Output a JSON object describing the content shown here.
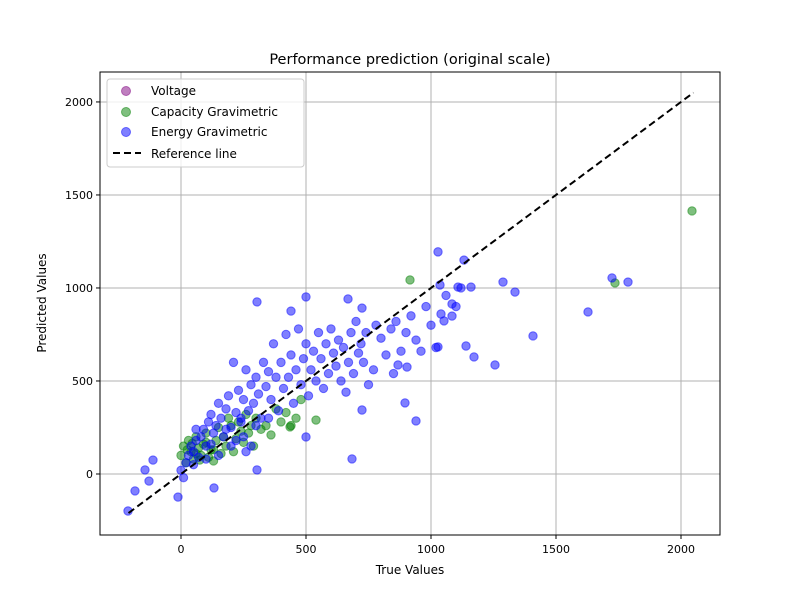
{
  "chart_data": {
    "type": "scatter",
    "title": "Performance prediction (original scale)",
    "xlabel": "True Values",
    "ylabel": "Predicted Values",
    "xlim": [
      -324,
      2156
    ],
    "ylim": [
      -328,
      2161
    ],
    "xticks": [
      0,
      500,
      1000,
      1500,
      2000
    ],
    "yticks": [
      0,
      500,
      1000,
      1500,
      2000
    ],
    "grid": true,
    "legend_position": "top-left",
    "series": [
      {
        "name": "Voltage",
        "color": "#800080",
        "points": []
      },
      {
        "name": "Capacity Gravimetric",
        "color": "#008000",
        "points": [
          [
            0,
            100
          ],
          [
            10,
            150
          ],
          [
            20,
            60
          ],
          [
            30,
            180
          ],
          [
            40,
            120
          ],
          [
            50,
            80
          ],
          [
            60,
            200
          ],
          [
            70,
            140
          ],
          [
            80,
            100
          ],
          [
            90,
            160
          ],
          [
            100,
            220
          ],
          [
            110,
            90
          ],
          [
            120,
            130
          ],
          [
            130,
            70
          ],
          [
            140,
            180
          ],
          [
            150,
            250
          ],
          [
            160,
            110
          ],
          [
            170,
            200
          ],
          [
            180,
            150
          ],
          [
            190,
            300
          ],
          [
            200,
            260
          ],
          [
            210,
            120
          ],
          [
            220,
            190
          ],
          [
            230,
            280
          ],
          [
            240,
            230
          ],
          [
            250,
            170
          ],
          [
            260,
            320
          ],
          [
            270,
            220
          ],
          [
            280,
            260
          ],
          [
            290,
            150
          ],
          [
            300,
            300
          ],
          [
            320,
            240
          ],
          [
            340,
            260
          ],
          [
            360,
            210
          ],
          [
            380,
            350
          ],
          [
            400,
            280
          ],
          [
            420,
            330
          ],
          [
            440,
            260
          ],
          [
            460,
            300
          ],
          [
            480,
            400
          ],
          [
            100,
            170
          ],
          [
            60,
            110
          ],
          [
            130,
            130
          ],
          [
            25,
            130
          ],
          [
            45,
            165
          ],
          [
            75,
            75
          ],
          [
            2044,
            1414
          ],
          [
            1736,
            1027
          ],
          [
            916,
            1043
          ],
          [
            436,
            253
          ],
          [
            540,
            290
          ]
        ]
      },
      {
        "name": "Energy Gravimetric",
        "color": "#0000ff",
        "points": [
          [
            0,
            20
          ],
          [
            10,
            -20
          ],
          [
            20,
            60
          ],
          [
            30,
            100
          ],
          [
            40,
            150
          ],
          [
            50,
            120
          ],
          [
            60,
            180
          ],
          [
            70,
            90
          ],
          [
            80,
            200
          ],
          [
            90,
            240
          ],
          [
            100,
            150
          ],
          [
            110,
            280
          ],
          [
            120,
            320
          ],
          [
            130,
            220
          ],
          [
            140,
            260
          ],
          [
            150,
            380
          ],
          [
            160,
            300
          ],
          [
            170,
            200
          ],
          [
            180,
            350
          ],
          [
            190,
            420
          ],
          [
            200,
            250
          ],
          [
            210,
            600
          ],
          [
            220,
            330
          ],
          [
            230,
            450
          ],
          [
            240,
            280
          ],
          [
            250,
            400
          ],
          [
            260,
            560
          ],
          [
            270,
            340
          ],
          [
            280,
            480
          ],
          [
            290,
            380
          ],
          [
            300,
            520
          ],
          [
            310,
            430
          ],
          [
            320,
            300
          ],
          [
            330,
            600
          ],
          [
            340,
            470
          ],
          [
            350,
            550
          ],
          [
            360,
            400
          ],
          [
            370,
            700
          ],
          [
            380,
            520
          ],
          [
            390,
            340
          ],
          [
            400,
            600
          ],
          [
            410,
            460
          ],
          [
            420,
            750
          ],
          [
            430,
            520
          ],
          [
            440,
            640
          ],
          [
            450,
            380
          ],
          [
            460,
            560
          ],
          [
            470,
            780
          ],
          [
            480,
            480
          ],
          [
            490,
            620
          ],
          [
            500,
            700
          ],
          [
            510,
            420
          ],
          [
            520,
            560
          ],
          [
            530,
            660
          ],
          [
            540,
            500
          ],
          [
            550,
            760
          ],
          [
            560,
            620
          ],
          [
            570,
            460
          ],
          [
            580,
            700
          ],
          [
            590,
            540
          ],
          [
            600,
            780
          ],
          [
            610,
            650
          ],
          [
            620,
            580
          ],
          [
            630,
            720
          ],
          [
            640,
            500
          ],
          [
            650,
            680
          ],
          [
            660,
            440
          ],
          [
            670,
            600
          ],
          [
            680,
            760
          ],
          [
            690,
            540
          ],
          [
            700,
            820
          ],
          [
            710,
            650
          ],
          [
            720,
            700
          ],
          [
            730,
            600
          ],
          [
            740,
            760
          ],
          [
            750,
            480
          ],
          [
            770,
            560
          ],
          [
            780,
            800
          ],
          [
            800,
            730
          ],
          [
            820,
            640
          ],
          [
            840,
            780
          ],
          [
            850,
            540
          ],
          [
            860,
            820
          ],
          [
            880,
            660
          ],
          [
            900,
            760
          ],
          [
            920,
            850
          ],
          [
            940,
            720
          ],
          [
            960,
            660
          ],
          [
            980,
            900
          ],
          [
            1000,
            800
          ],
          [
            1020,
            680
          ],
          [
            1040,
            860
          ],
          [
            1060,
            960
          ],
          [
            1100,
            900
          ],
          [
            1120,
            1000
          ],
          [
            50,
            50
          ],
          [
            100,
            80
          ],
          [
            150,
            100
          ],
          [
            200,
            150
          ],
          [
            250,
            200
          ],
          [
            120,
            160
          ],
          [
            180,
            240
          ],
          [
            220,
            180
          ],
          [
            60,
            240
          ],
          [
            240,
            300
          ],
          [
            300,
            260
          ],
          [
            350,
            300
          ],
          [
            280,
            150
          ],
          [
            260,
            120
          ],
          [
            1788,
            1032
          ],
          [
            1724,
            1054
          ],
          [
            1628,
            871
          ],
          [
            1408,
            742
          ],
          [
            1256,
            586
          ],
          [
            1172,
            629
          ],
          [
            1140,
            688
          ],
          [
            1336,
            978
          ],
          [
            1288,
            1032
          ],
          [
            1160,
            1005
          ],
          [
            1132,
            1150
          ],
          [
            1028,
            1194
          ],
          [
            1108,
            1005
          ],
          [
            1036,
            1016
          ],
          [
            1084,
            914
          ],
          [
            1084,
            849
          ],
          [
            1028,
            683
          ],
          [
            1052,
            823
          ],
          [
            940,
            285
          ],
          [
            896,
            382
          ],
          [
            904,
            575
          ],
          [
            868,
            586
          ],
          [
            304,
            22
          ],
          [
            684,
            81
          ],
          [
            724,
            344
          ],
          [
            500,
            199
          ],
          [
            132,
            -75
          ],
          [
            -12,
            -124
          ],
          [
            -212,
            -199
          ],
          [
            -184,
            -91
          ],
          [
            -144,
            22
          ],
          [
            -112,
            75
          ],
          [
            -128,
            -38
          ],
          [
            304,
            925
          ],
          [
            440,
            876
          ],
          [
            500,
            952
          ],
          [
            668,
            941
          ],
          [
            724,
            892
          ]
        ]
      }
    ],
    "reference_line": {
      "name": "Reference line",
      "from": [
        -210,
        -210
      ],
      "to": [
        2050,
        2050
      ],
      "color": "#000000"
    }
  }
}
